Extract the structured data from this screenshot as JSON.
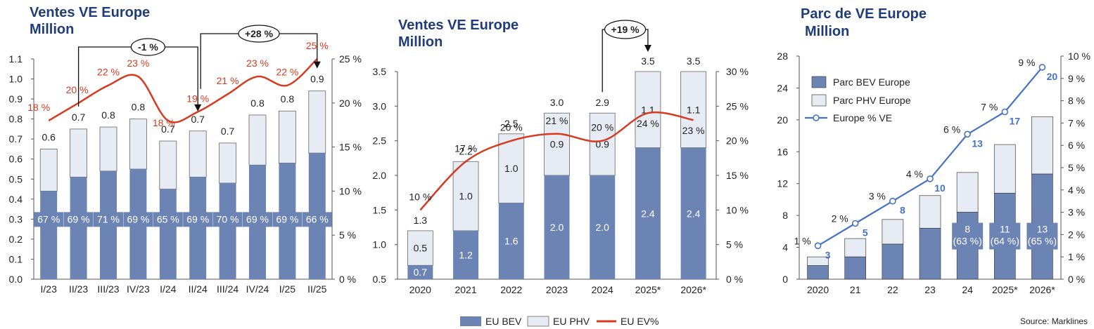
{
  "colors": {
    "bev": "#6c84b4",
    "phv": "#e7ebf3",
    "ev_line": "#d63a1f",
    "blue_line": "#4472c4",
    "title": "#1f3d7a",
    "box_bg": "#6c84b4"
  },
  "chart_data": [
    {
      "type": "bar",
      "title": "Ventes VE Europe",
      "subtitle": "Million",
      "categories": [
        "I/23",
        "II/23",
        "III/23",
        "IV/23",
        "I/24",
        "II/24",
        "III/24",
        "IV/24",
        "I/25",
        "II/25"
      ],
      "series": [
        {
          "name": "EU BEV",
          "values": [
            0.44,
            0.51,
            0.54,
            0.55,
            0.45,
            0.51,
            0.48,
            0.57,
            0.58,
            0.63
          ]
        },
        {
          "name": "EU PHV",
          "values": [
            0.21,
            0.24,
            0.22,
            0.25,
            0.24,
            0.23,
            0.2,
            0.25,
            0.26,
            0.31
          ]
        }
      ],
      "totals": [
        "0.6",
        "0.7",
        "0.8",
        "0.8",
        "0.7",
        "0.7",
        "0.7",
        "0.8",
        "0.8",
        "0.9"
      ],
      "bev_share": [
        "67 %",
        "69 %",
        "71 %",
        "69 %",
        "65 %",
        "69 %",
        "70 %",
        "69 %",
        "69 %",
        "66 %"
      ],
      "ev_pct": [
        18,
        20,
        22,
        23,
        18,
        19,
        21,
        23,
        22,
        25
      ],
      "ev_pct_labels": [
        "18 %",
        "20 %",
        "22 %",
        "23 %",
        "18 %",
        "19 %",
        "21 %",
        "23 %",
        "22 %",
        "25 %"
      ],
      "ylim": [
        0,
        1.1
      ],
      "yticks": [
        "0.0",
        "0.1",
        "0.2",
        "0.3",
        "0.4",
        "0.5",
        "0.6",
        "0.7",
        "0.8",
        "0.9",
        "1.0",
        "1.1"
      ],
      "y2lim": [
        0,
        25
      ],
      "y2ticks": [
        "0 %",
        "5 %",
        "10 %",
        "15 %",
        "20 %",
        "25 %"
      ],
      "callouts": [
        {
          "label": "-1 %",
          "from": "II/23",
          "to": "II/24"
        },
        {
          "label": "+28 %",
          "from": "II/24",
          "to": "II/25"
        }
      ]
    },
    {
      "type": "bar",
      "title": "Ventes VE Europe",
      "subtitle": "Million",
      "categories": [
        "2020",
        "2021",
        "2022",
        "2023",
        "2024",
        "2025*",
        "2026*"
      ],
      "series": [
        {
          "name": "EU BEV",
          "values": [
            0.7,
            1.2,
            1.6,
            2.0,
            2.0,
            2.4,
            2.4
          ]
        },
        {
          "name": "EU PHV",
          "values": [
            0.5,
            1.0,
            1.0,
            0.9,
            0.9,
            1.1,
            1.1
          ]
        }
      ],
      "bev_labels": [
        "0.7",
        "1.2",
        "1.6",
        "2.0",
        "2.0",
        "2.4",
        "2.4"
      ],
      "phv_labels": [
        "0.5",
        "1.0",
        "1.0",
        "0.9",
        "0.9",
        "1.1",
        "1.1"
      ],
      "totals": [
        "1.3",
        "2.2",
        "2.5",
        "3.0",
        "2.9",
        "3.5",
        "3.5"
      ],
      "ev_pct": [
        10,
        17,
        20,
        21,
        20,
        24,
        23
      ],
      "ev_pct_labels": [
        "10 %",
        "17 %",
        "20 %",
        "21 %",
        "20 %",
        "24 %",
        "23 %"
      ],
      "ylim": [
        0.5,
        3.5
      ],
      "yticks": [
        "0.5",
        "1.0",
        "1.5",
        "2.0",
        "2.5",
        "3.0",
        "3.5"
      ],
      "y2lim": [
        0,
        30
      ],
      "y2ticks": [
        "0 %",
        "5 %",
        "10 %",
        "15 %",
        "20 %",
        "25 %",
        "30 %"
      ],
      "callouts": [
        {
          "label": "+19 %",
          "from": "2024",
          "to": "2025*"
        }
      ]
    },
    {
      "type": "bar",
      "title": "Parc de VE Europe",
      "subtitle": "Million",
      "categories": [
        "2020",
        "21",
        "22",
        "23",
        "24",
        "2025*",
        "2026*"
      ],
      "series": [
        {
          "name": "Parc BEV Europe",
          "values": [
            1.7,
            2.8,
            4.4,
            6.4,
            8.4,
            10.8,
            13.2
          ]
        },
        {
          "name": "Parc PHV Europe",
          "values": [
            1.1,
            2.3,
            3.1,
            4.1,
            5.0,
            6.1,
            7.2
          ]
        }
      ],
      "totals_labels": [
        "3",
        "5",
        "8",
        "10",
        "13",
        "17",
        "20"
      ],
      "box_labels": [
        {
          "index": 4,
          "line1": "8",
          "line2": "(63 %)"
        },
        {
          "index": 5,
          "line1": "11",
          "line2": "(64 %)"
        },
        {
          "index": 6,
          "line1": "13",
          "line2": "(65 %)"
        }
      ],
      "ev_pct": [
        1,
        2,
        3,
        4,
        6,
        7,
        9
      ],
      "ev_pct_labels": [
        "1 %",
        "2 %",
        "3 %",
        "4 %",
        "6 %",
        "7 %",
        "9 %"
      ],
      "ylim": [
        0,
        28
      ],
      "yticks": [
        "0",
        "4",
        "8",
        "12",
        "16",
        "20",
        "24",
        "28"
      ],
      "y2lim": [
        0,
        10
      ],
      "y2ticks": [
        "0 %",
        "1 %",
        "2 %",
        "3 %",
        "4 %",
        "5 %",
        "6 %",
        "7 %",
        "8 %",
        "9 %",
        "10 %"
      ],
      "legend": [
        "Parc BEV Europe",
        "Parc PHV Europe",
        "Europe % VE"
      ]
    }
  ],
  "bottom_legend": [
    "EU BEV",
    "EU PHV",
    "EU EV%"
  ],
  "source": "Source: Marklines"
}
